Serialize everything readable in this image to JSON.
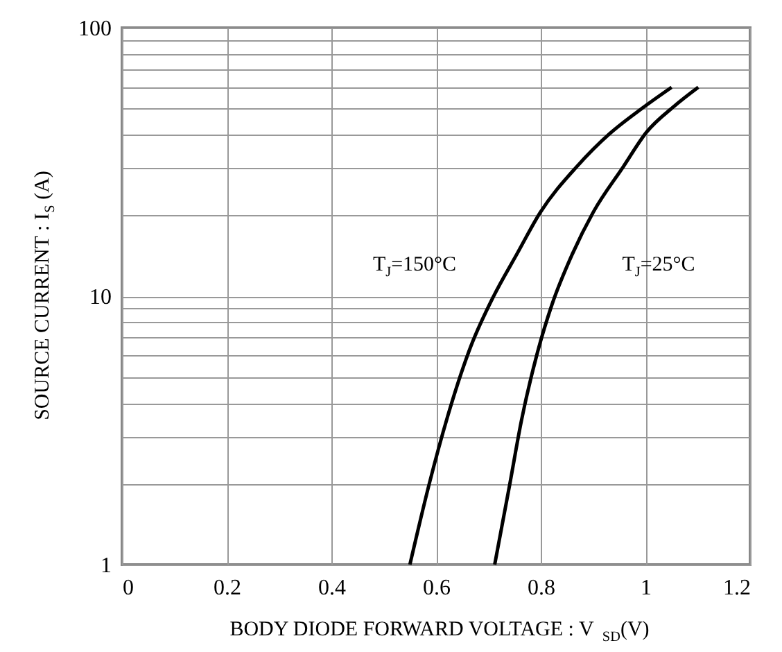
{
  "chart_data": {
    "type": "line",
    "xlabel": "BODY DIODE FORWARD VOLTAGE : V$_{SD}$(V)",
    "ylabel": "SOURCE CURRENT : I$_{S}$ (A)",
    "xlim": [
      0,
      1.2
    ],
    "xticks": [
      0,
      0.2,
      0.4,
      0.6,
      0.8,
      1,
      1.2
    ],
    "ylim": [
      1,
      100
    ],
    "yticks": [
      1,
      {
        "value": 2,
        "label": null
      },
      {
        "value": 3,
        "label": null
      },
      {
        "value": 4,
        "label": null
      },
      {
        "value": 5,
        "label": null
      },
      {
        "value": 6,
        "label": null
      },
      {
        "value": 7,
        "label": null
      },
      {
        "value": 8,
        "label": null
      },
      {
        "value": 9,
        "label": null
      },
      10,
      {
        "value": 20,
        "label": null
      },
      {
        "value": 30,
        "label": null
      },
      {
        "value": 40,
        "label": null
      },
      {
        "value": 50,
        "label": null
      },
      {
        "value": 60,
        "label": null
      },
      {
        "value": 70,
        "label": null
      },
      {
        "value": 80,
        "label": null
      },
      {
        "value": 90,
        "label": null
      },
      100
    ],
    "log": "y",
    "grid": true,
    "line_style": "solid",
    "marker": "none",
    "series": [
      {
        "color": "#000000",
        "x": [
          0.55,
          0.587,
          0.622,
          0.666,
          0.71,
          0.754,
          0.799,
          0.869,
          0.931,
          0.993,
          1.05
        ],
        "values": [
          1,
          2,
          3.56,
          6.47,
          10,
          14.3,
          20.5,
          30.4,
          40.2,
          50,
          60
        ]
      },
      {
        "color": "#000000",
        "x": [
          0.712,
          0.741,
          0.763,
          0.794,
          0.821,
          0.86,
          0.9,
          0.958,
          1.002,
          1.055,
          1.101
        ],
        "values": [
          1,
          2,
          3.43,
          6.2,
          9.25,
          14.3,
          20.5,
          30.4,
          40.8,
          51,
          60
        ]
      }
    ],
    "annotations": [
      "T$_{J}$=150°C",
      "T$_{J}$=25°C"
    ]
  }
}
